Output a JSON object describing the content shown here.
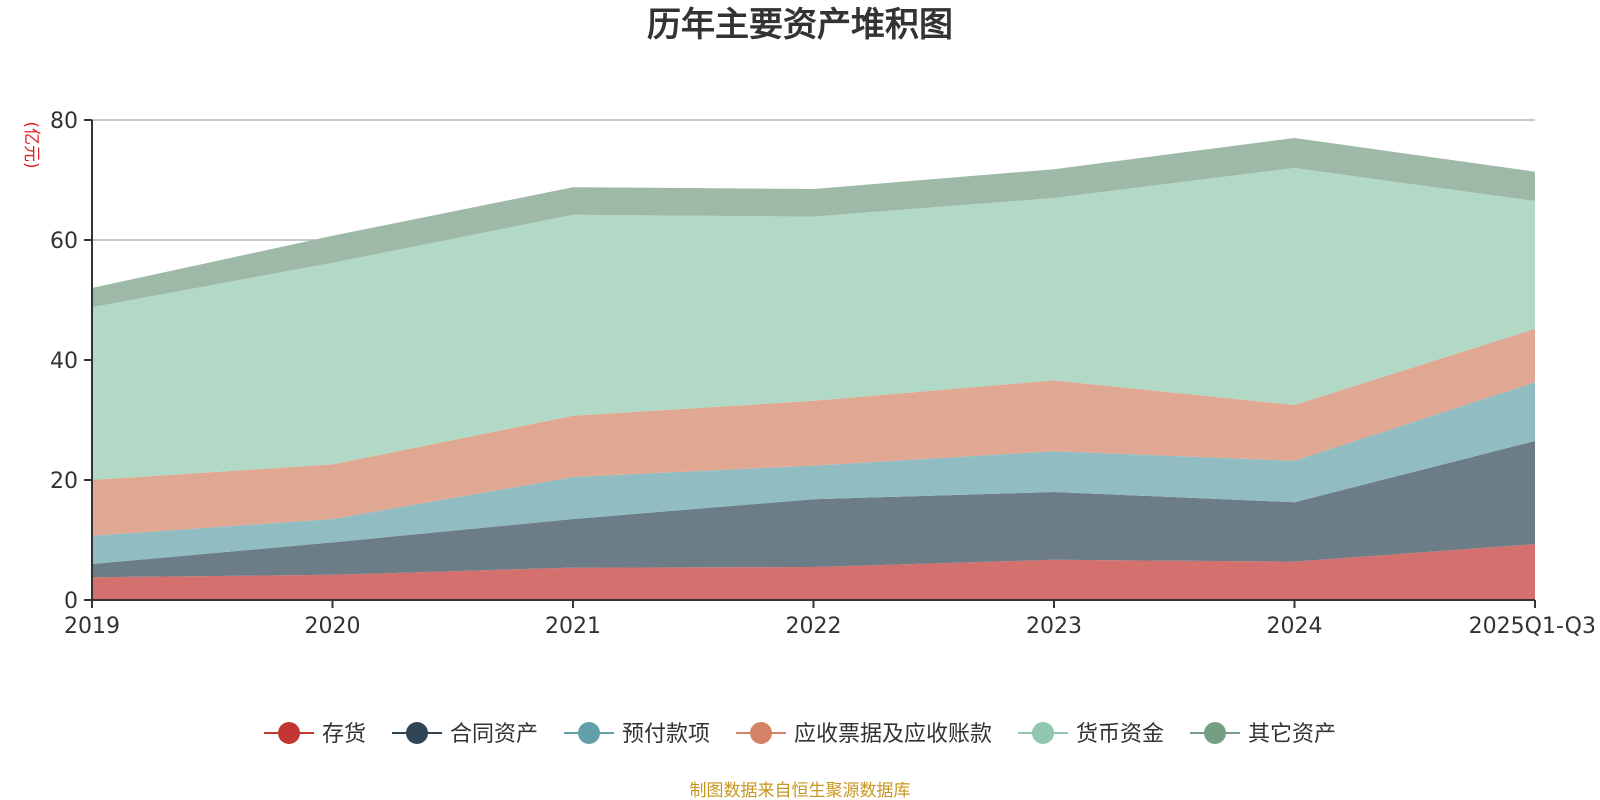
{
  "chart_data": {
    "type": "area",
    "stacked": true,
    "title": "历年主要资产堆积图",
    "ylabel": "(亿元)",
    "xlabel": "",
    "ylim": [
      0,
      80
    ],
    "yticks": [
      0,
      20,
      40,
      60,
      80
    ],
    "grid": true,
    "legend_position": "bottom",
    "categories": [
      "2019",
      "2020",
      "2021",
      "2022",
      "2023",
      "2024",
      "2025Q1-Q3"
    ],
    "series": [
      {
        "name": "存货",
        "color": "#c23531",
        "fill": "#d4706d",
        "values": [
          3.8,
          4.2,
          5.4,
          5.5,
          6.7,
          6.4,
          9.3
        ]
      },
      {
        "name": "合同资产",
        "color": "#2f4554",
        "fill": "#6d7d88",
        "values": [
          2.2,
          5.4,
          8.1,
          11.3,
          11.3,
          9.9,
          17.2
        ]
      },
      {
        "name": "预付款项",
        "color": "#61a0a8",
        "fill": "#90bcc2",
        "values": [
          4.7,
          3.9,
          7.0,
          5.6,
          6.8,
          6.9,
          9.8
        ]
      },
      {
        "name": "应收票据及应收账款",
        "color": "#d48265",
        "fill": "#e0a792",
        "values": [
          9.3,
          9.1,
          10.2,
          10.8,
          11.8,
          9.3,
          8.9
        ]
      },
      {
        "name": "货币资金",
        "color": "#91c7ae",
        "fill": "#b2d8c6",
        "values": [
          28.8,
          33.6,
          33.5,
          30.7,
          30.4,
          39.5,
          21.3
        ]
      },
      {
        "name": "其它资产",
        "color": "#749f83",
        "fill": "#9eb9a7",
        "values": [
          3.2,
          4.5,
          4.6,
          4.6,
          4.8,
          5.0,
          4.9
        ]
      }
    ],
    "source_note": "制图数据来自恒生聚源数据库"
  }
}
